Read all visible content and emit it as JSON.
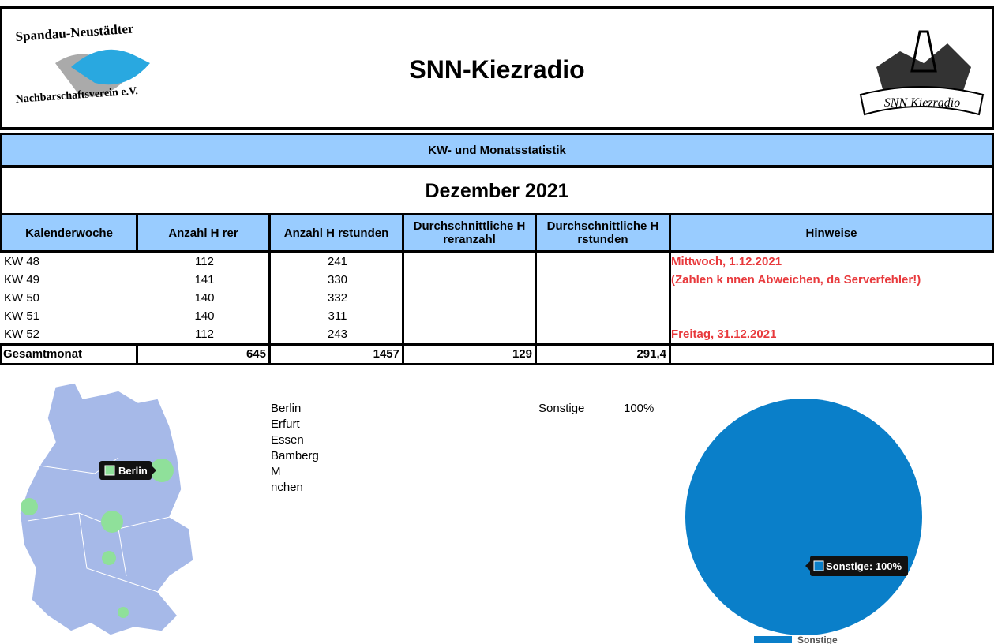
{
  "header": {
    "logo_left_top": "Spandau-Neustädter",
    "logo_left_bottom": "Nachbarschaftsverein e.V.",
    "title": "SNN-Kiezradio",
    "logo_right": "SNN Kiezradio"
  },
  "banner": "KW- und Monatsstatistik",
  "month": "Dezember 2021",
  "table": {
    "columns": [
      "Kalenderwoche",
      "Anzahl H rer",
      "Anzahl H rstunden",
      "Durchschnittliche H reranzahl",
      "Durchschnittliche H rstunden",
      "Hinweise"
    ],
    "rows": [
      {
        "week": "KW 48",
        "listeners": 112,
        "hours": 241,
        "note": "Mittwoch, 1.12.2021"
      },
      {
        "week": "KW 49",
        "listeners": 141,
        "hours": 330,
        "note": "(Zahlen k nnen Abweichen, da Serverfehler!)"
      },
      {
        "week": "KW 50",
        "listeners": 140,
        "hours": 332
      },
      {
        "week": "KW 51",
        "listeners": 140,
        "hours": 311
      },
      {
        "week": "KW 52",
        "listeners": 112,
        "hours": 243,
        "note": "Freitag, 31.12.2021"
      }
    ],
    "total": {
      "label": "Gesamtmonat",
      "listeners": 645,
      "hours": 1457,
      "avg_listeners": 129,
      "avg_hours": "291,4"
    }
  },
  "map": {
    "cities": [
      "Berlin",
      "Erfurt",
      "Essen",
      "Bamberg",
      "M nchen"
    ],
    "tooltip": "Berlin"
  },
  "chart_data": {
    "type": "pie",
    "categories": [
      "Sonstige"
    ],
    "values": [
      100
    ],
    "value_labels": [
      "100%"
    ],
    "color": "#0a7fc9",
    "tooltip": "Sonstige: 100%"
  }
}
